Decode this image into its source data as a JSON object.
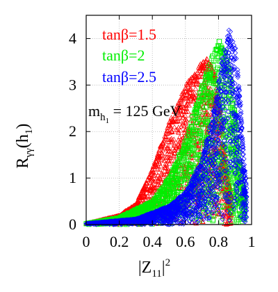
{
  "chart_data": {
    "type": "scatter",
    "title": "",
    "xlabel": "|Z",
    "xlabel_sub": "11",
    "xlabel_tail": "|",
    "xlabel_sup": "2",
    "ylabel": "R",
    "ylabel_sub": "γγ",
    "ylabel_tail": "(h",
    "ylabel_sub2": "1",
    "ylabel_close": ")",
    "xlim": [
      0,
      1
    ],
    "ylim": [
      0,
      4.5
    ],
    "x_ticks": [
      "0",
      "0.2",
      "0.4",
      "0.6",
      "0.8",
      "1"
    ],
    "x_tick_values": [
      0,
      0.2,
      0.4,
      0.6,
      0.8,
      1.0
    ],
    "y_ticks": [
      "0",
      "1",
      "2",
      "3",
      "4"
    ],
    "y_tick_values": [
      0,
      1,
      2,
      3,
      4
    ],
    "grid": true,
    "legend_position": "top-left",
    "annotation": {
      "prefix": "m",
      "sub": "h",
      "subsub": "1",
      "text": " = 125 GeV"
    },
    "series": [
      {
        "name": "tanβ=1.5",
        "color": "#ff0000",
        "marker": "triangle",
        "peak": [
          0.73,
          3.6
        ],
        "envelope": [
          [
            0.0,
            0.02
          ],
          [
            0.2,
            0.2
          ],
          [
            0.3,
            0.45
          ],
          [
            0.4,
            1.2
          ],
          [
            0.5,
            2.2
          ],
          [
            0.6,
            3.0
          ],
          [
            0.7,
            3.5
          ],
          [
            0.73,
            3.6
          ],
          [
            0.78,
            3.3
          ],
          [
            0.82,
            2.2
          ],
          [
            0.85,
            1.2
          ],
          [
            0.88,
            0.6
          ]
        ]
      },
      {
        "name": "tanβ=2",
        "color": "#00ee00",
        "marker": "square",
        "peak": [
          0.81,
          4.0
        ],
        "envelope": [
          [
            0.0,
            0.02
          ],
          [
            0.2,
            0.15
          ],
          [
            0.4,
            0.5
          ],
          [
            0.5,
            1.0
          ],
          [
            0.6,
            1.8
          ],
          [
            0.7,
            3.0
          ],
          [
            0.78,
            3.8
          ],
          [
            0.81,
            4.0
          ],
          [
            0.86,
            3.6
          ],
          [
            0.9,
            2.4
          ],
          [
            0.93,
            1.3
          ],
          [
            0.96,
            0.6
          ]
        ]
      },
      {
        "name": "tanβ=2.5",
        "color": "#0000ff",
        "marker": "diamond",
        "peak": [
          0.86,
          4.25
        ],
        "envelope": [
          [
            0.0,
            0.02
          ],
          [
            0.3,
            0.12
          ],
          [
            0.5,
            0.4
          ],
          [
            0.6,
            0.7
          ],
          [
            0.7,
            1.4
          ],
          [
            0.78,
            2.6
          ],
          [
            0.83,
            3.8
          ],
          [
            0.86,
            4.25
          ],
          [
            0.9,
            3.9
          ],
          [
            0.93,
            2.8
          ],
          [
            0.95,
            1.6
          ],
          [
            0.97,
            0.8
          ]
        ]
      }
    ]
  }
}
